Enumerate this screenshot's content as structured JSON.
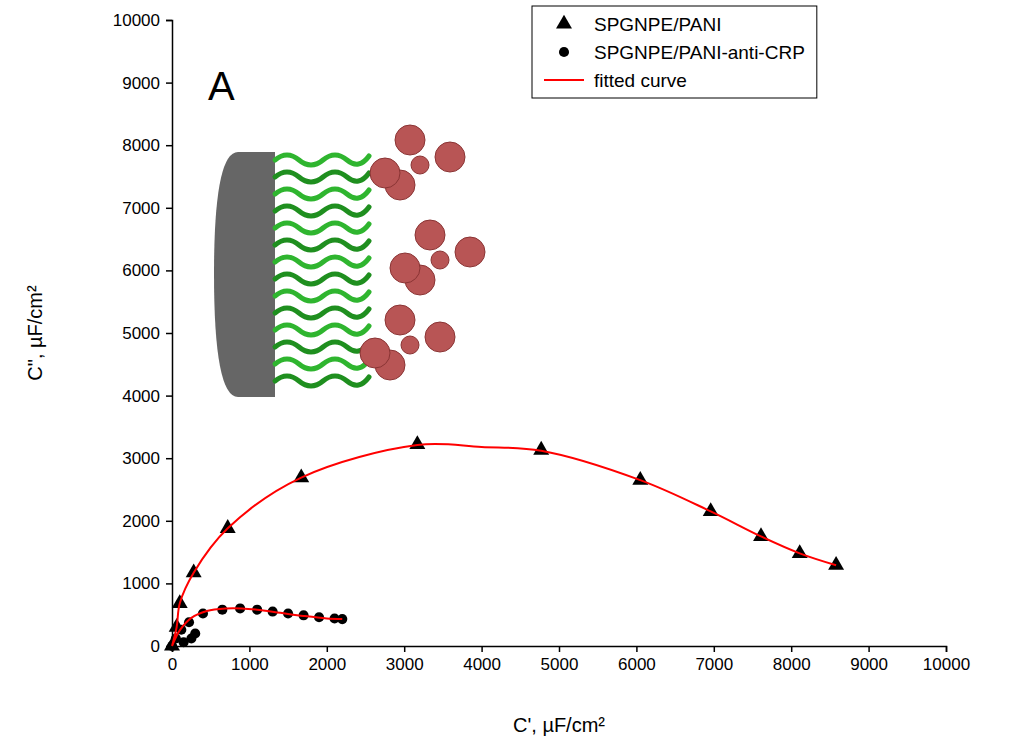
{
  "chart_data": {
    "type": "scatter",
    "x_label": "C', µF/cm²",
    "y_label": "C\", µF/cm²",
    "annotations": [
      "A"
    ],
    "xlim": [
      0,
      10000
    ],
    "ylim": [
      0,
      10000
    ],
    "xticks": [
      0,
      1000,
      2000,
      3000,
      4000,
      5000,
      6000,
      7000,
      8000,
      9000,
      10000
    ],
    "yticks": [
      0,
      1000,
      2000,
      3000,
      4000,
      5000,
      6000,
      7000,
      8000,
      9000,
      10000
    ],
    "grid": false,
    "legend": "upper right",
    "series": [
      {
        "name": "SPGNPE/PANI",
        "type": "scatter",
        "marker": "triangle",
        "color": "#000000",
        "x": [
          0,
          60,
          100,
          280,
          720,
          1670,
          3170,
          4770,
          6050,
          6960,
          7610,
          8110,
          8580
        ],
        "values": [
          0,
          300,
          680,
          1170,
          1880,
          2690,
          3220,
          3130,
          2650,
          2150,
          1750,
          1480,
          1290
        ]
      },
      {
        "name": "SPGNPE/PANI-anti-CRP",
        "type": "scatter",
        "marker": "circle",
        "color": "#000000",
        "x": [
          0,
          50,
          150,
          250,
          300,
          120,
          220,
          400,
          650,
          880,
          1100,
          1300,
          1500,
          1700,
          1900,
          2100,
          2200
        ],
        "values": [
          0,
          120,
          60,
          120,
          200,
          260,
          380,
          520,
          580,
          600,
          580,
          550,
          520,
          490,
          460,
          440,
          430
        ]
      },
      {
        "name": "fitted curve",
        "type": "line",
        "line_style": "solid",
        "color": "#ff0000",
        "x": [
          0,
          60,
          100,
          280,
          720,
          1670,
          3170,
          4000,
          4770,
          6050,
          6960,
          7610,
          8110,
          8580,
          null,
          0,
          100,
          250,
          450,
          700,
          900,
          1100,
          1400,
          1700,
          2000,
          2200
        ],
        "values": [
          0,
          300,
          680,
          1170,
          1880,
          2690,
          3210,
          3180,
          3120,
          2650,
          2150,
          1750,
          1480,
          1290,
          null,
          0,
          250,
          450,
          560,
          600,
          600,
          580,
          530,
          480,
          440,
          430
        ]
      }
    ]
  }
}
